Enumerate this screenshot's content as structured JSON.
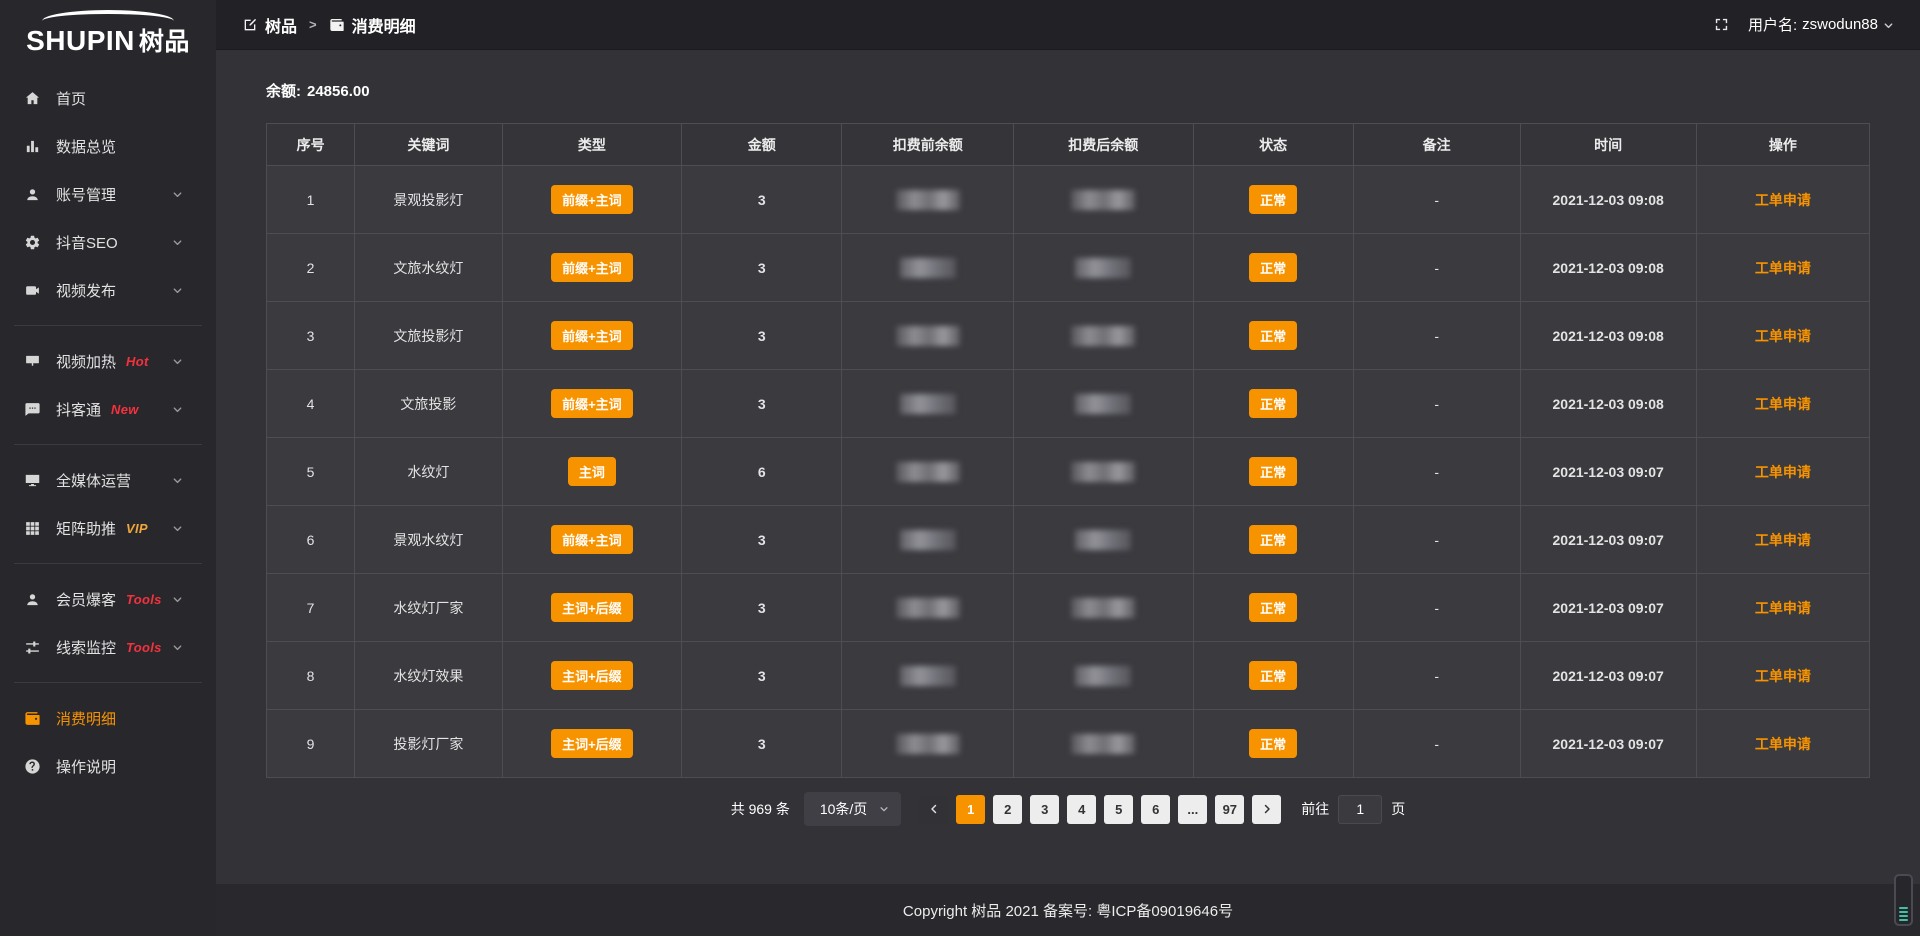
{
  "app": {
    "logo_en": "SHUPIN",
    "logo_cn": "树品"
  },
  "topbar": {
    "breadcrumb": [
      {
        "icon": "compose",
        "label": "树品"
      },
      {
        "icon": "wallet",
        "label": "消费明细"
      }
    ],
    "separator": ">",
    "username_label": "用户名:",
    "username": "zswodun88"
  },
  "sidebar": {
    "items": [
      {
        "id": "home",
        "icon": "home",
        "label": "首页"
      },
      {
        "id": "data-overview",
        "icon": "chart",
        "label": "数据总览"
      },
      {
        "id": "account-management",
        "icon": "user",
        "label": "账号管理",
        "chevron": true
      },
      {
        "id": "douyin-seo",
        "icon": "gear",
        "label": "抖音SEO",
        "chevron": true
      },
      {
        "id": "video-publish",
        "icon": "video",
        "label": "视频发布",
        "chevron": true,
        "divider_after": true
      },
      {
        "id": "video-heat",
        "icon": "screen",
        "label": "视频加热",
        "tag": "Hot",
        "tag_style": "red",
        "chevron": true
      },
      {
        "id": "douketong",
        "icon": "chat",
        "label": "抖客通",
        "tag": "New",
        "tag_style": "red",
        "chevron": true,
        "divider_after": true
      },
      {
        "id": "all-media-operation",
        "icon": "monitor",
        "label": "全媒体运营",
        "chevron": true
      },
      {
        "id": "matrix-boost",
        "icon": "gridbox",
        "label": "矩阵助推",
        "tag": "VIP",
        "tag_style": "gold",
        "chevron": true,
        "divider_after": true
      },
      {
        "id": "member-burst",
        "icon": "person",
        "label": "会员爆客",
        "tag": "Tools",
        "tag_style": "red",
        "chevron": true
      },
      {
        "id": "lead-monitor",
        "icon": "sliders",
        "label": "线索监控",
        "tag": "Tools",
        "tag_style": "red",
        "chevron": true,
        "divider_after": true
      },
      {
        "id": "consumption-detail",
        "icon": "wallet",
        "label": "消费明细",
        "active": true
      },
      {
        "id": "operation-guide",
        "icon": "question",
        "label": "操作说明"
      }
    ]
  },
  "main": {
    "balance_label": "余额:",
    "balance_value": "24856.00",
    "table": {
      "headers": [
        "序号",
        "关键词",
        "类型",
        "金额",
        "扣费前余额",
        "扣费后余额",
        "状态",
        "备注",
        "时间",
        "操作"
      ],
      "masked_columns": [
        "扣费前余额",
        "扣费后余额"
      ],
      "rows": [
        {
          "no": "1",
          "keyword": "景观投影灯",
          "type": "前缀+主词",
          "amount": "3",
          "status": "正常",
          "note": "-",
          "time": "2021-12-03 09:08",
          "action": "工单申请"
        },
        {
          "no": "2",
          "keyword": "文旅水纹灯",
          "type": "前缀+主词",
          "amount": "3",
          "status": "正常",
          "note": "-",
          "time": "2021-12-03 09:08",
          "action": "工单申请"
        },
        {
          "no": "3",
          "keyword": "文旅投影灯",
          "type": "前缀+主词",
          "amount": "3",
          "status": "正常",
          "note": "-",
          "time": "2021-12-03 09:08",
          "action": "工单申请"
        },
        {
          "no": "4",
          "keyword": "文旅投影",
          "type": "前缀+主词",
          "amount": "3",
          "status": "正常",
          "note": "-",
          "time": "2021-12-03 09:08",
          "action": "工单申请"
        },
        {
          "no": "5",
          "keyword": "水纹灯",
          "type": "主词",
          "amount": "6",
          "status": "正常",
          "note": "-",
          "time": "2021-12-03 09:07",
          "action": "工单申请"
        },
        {
          "no": "6",
          "keyword": "景观水纹灯",
          "type": "前缀+主词",
          "amount": "3",
          "status": "正常",
          "note": "-",
          "time": "2021-12-03 09:07",
          "action": "工单申请"
        },
        {
          "no": "7",
          "keyword": "水纹灯厂家",
          "type": "主词+后缀",
          "amount": "3",
          "status": "正常",
          "note": "-",
          "time": "2021-12-03 09:07",
          "action": "工单申请"
        },
        {
          "no": "8",
          "keyword": "水纹灯效果",
          "type": "主词+后缀",
          "amount": "3",
          "status": "正常",
          "note": "-",
          "time": "2021-12-03 09:07",
          "action": "工单申请"
        },
        {
          "no": "9",
          "keyword": "投影灯厂家",
          "type": "主词+后缀",
          "amount": "3",
          "status": "正常",
          "note": "-",
          "time": "2021-12-03 09:07",
          "action": "工单申请"
        }
      ]
    }
  },
  "pagination": {
    "total": "共 969 条",
    "page_size": "10条/页",
    "pages": [
      "1",
      "2",
      "3",
      "4",
      "5",
      "6",
      "...",
      "97"
    ],
    "active_page": "1",
    "goto_label": "前往",
    "goto_value": "1",
    "goto_suffix": "页"
  },
  "footer": {
    "copyright": "Copyright 树品 2021 备案号: 粤ICP备09019646号"
  },
  "colors": {
    "accent": "#f89300",
    "tag_red": "#f5313d",
    "tag_gold": "#f0a63c",
    "sidebar_bg": "#28282c",
    "topbar_bg": "#222226",
    "cell_bg": "#3a3a3f"
  }
}
